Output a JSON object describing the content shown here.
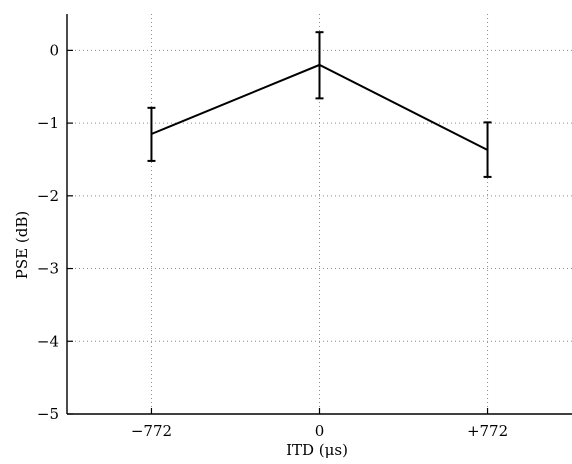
{
  "chart_data": {
    "type": "line",
    "xlabel": "ITD (μs)",
    "ylabel": "PSE (dB)",
    "categories": [
      "−772",
      "0",
      "+772"
    ],
    "x": [
      -772,
      0,
      772
    ],
    "ylim": [
      -5,
      0.5
    ],
    "xlim": [
      -1160,
      1160
    ],
    "yticks": [
      0,
      -1,
      -2,
      -3,
      -4,
      -5
    ],
    "ytick_labels": [
      "0",
      "−1",
      "−2",
      "−3",
      "−4",
      "−5"
    ],
    "grid": true,
    "series": [
      {
        "values": [
          -1.15,
          -0.2,
          -1.37
        ],
        "error_lower": [
          -1.52,
          -0.66,
          -1.74
        ],
        "error_upper": [
          -0.79,
          0.25,
          -0.99
        ]
      }
    ],
    "colors": {
      "line": "#000000",
      "grid": "#8c8c8c",
      "axis": "#000000"
    }
  }
}
